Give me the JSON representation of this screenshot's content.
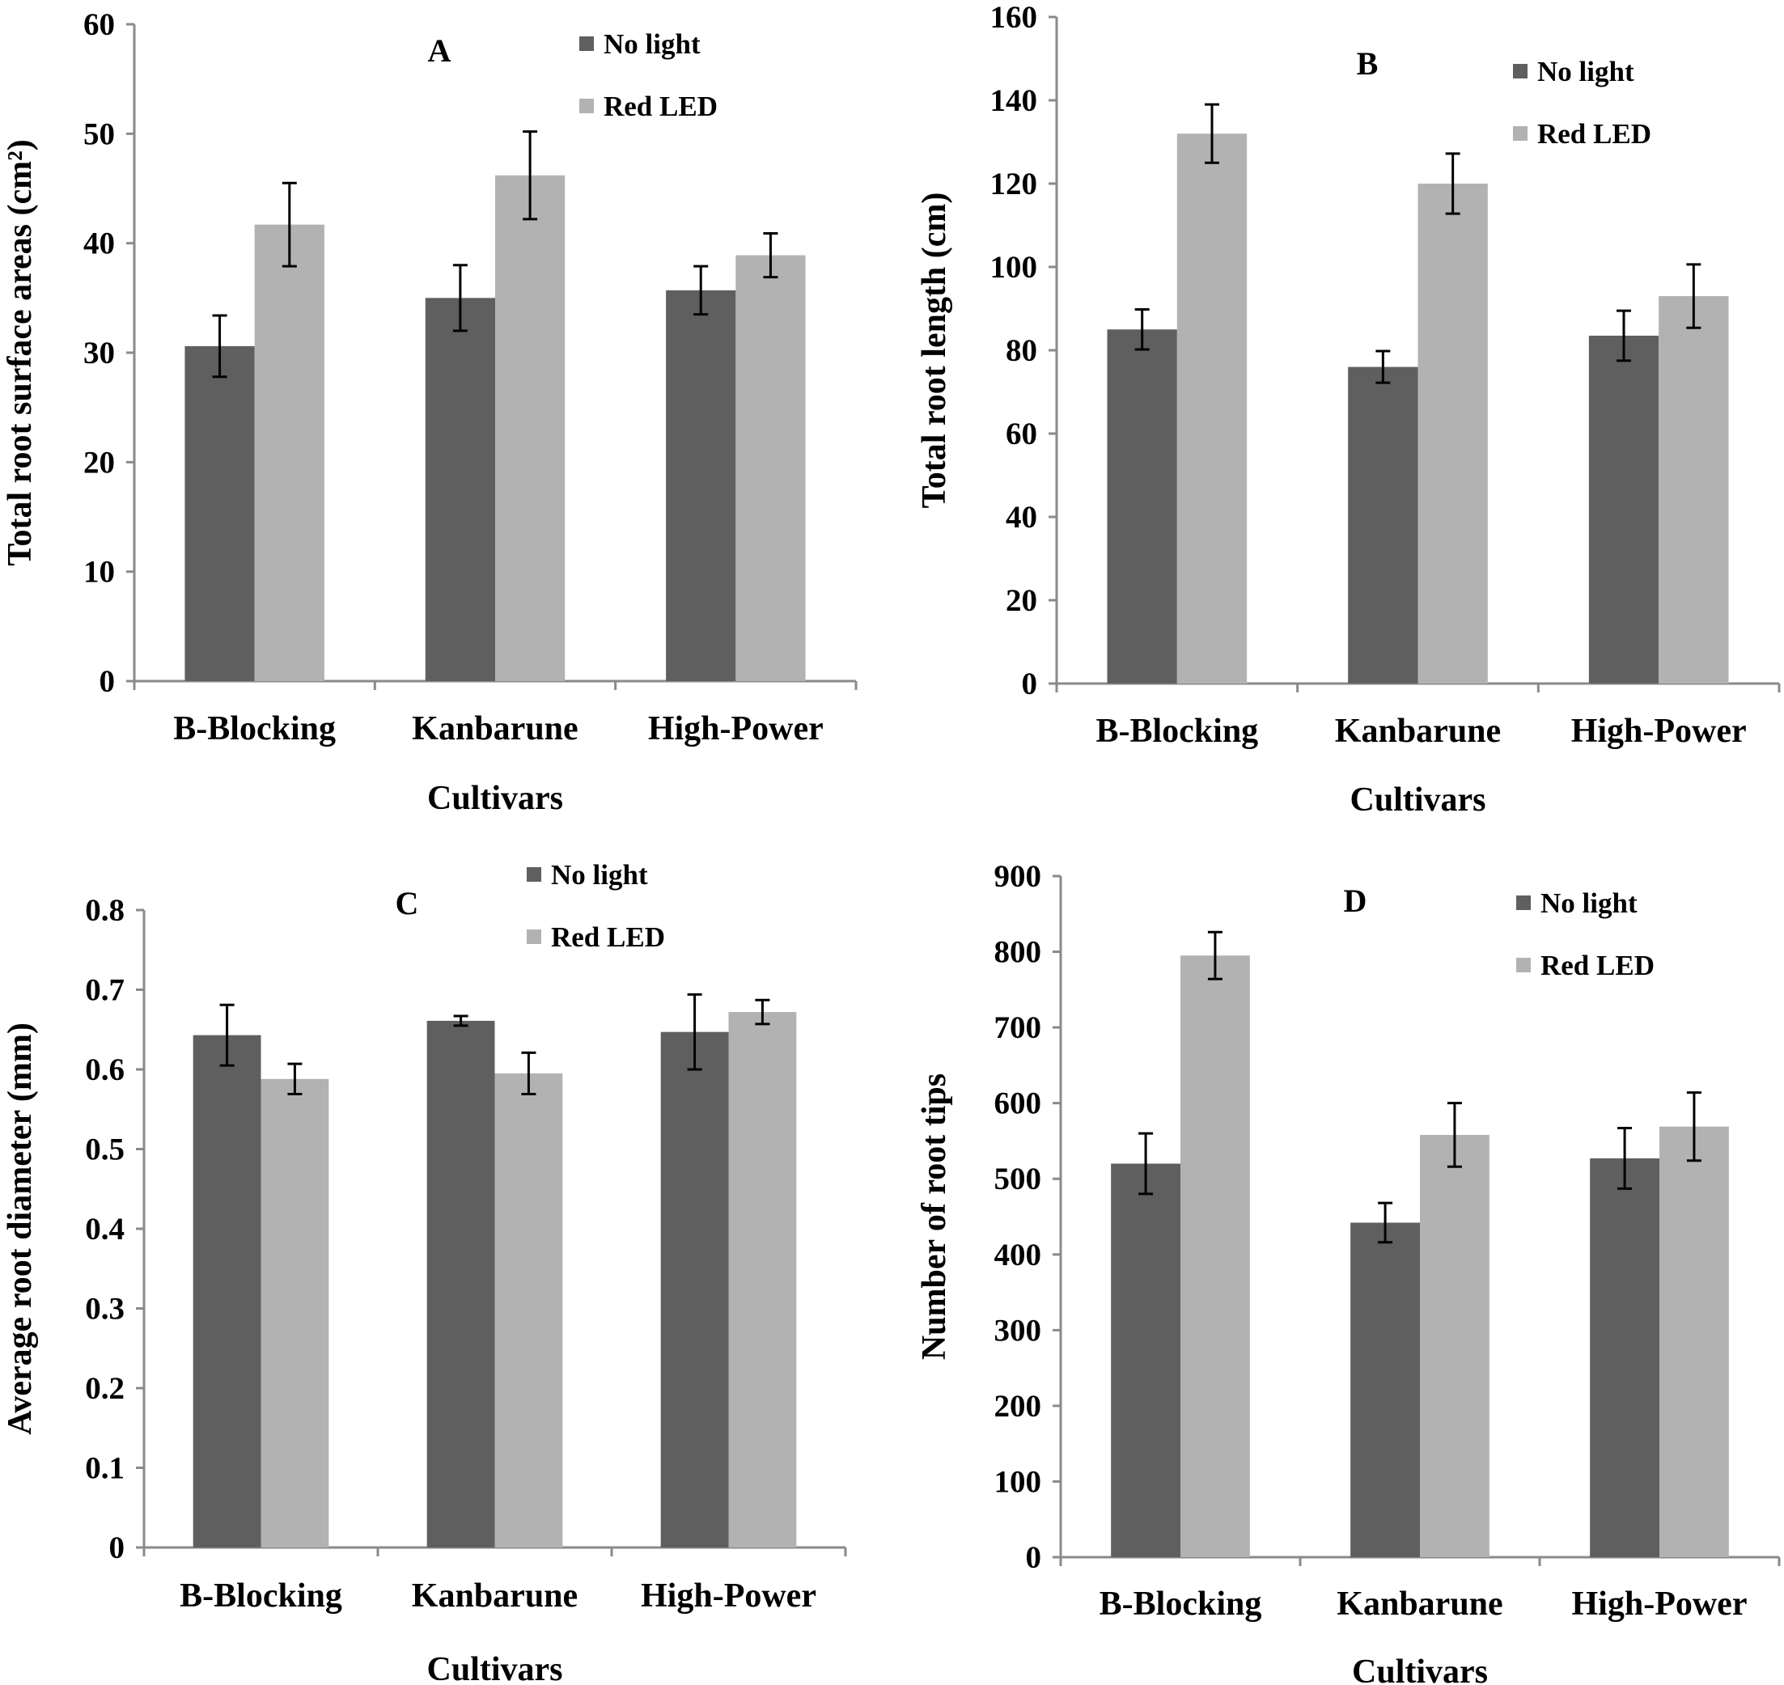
{
  "colors": {
    "no_light": "#5f5f5f",
    "red_led": "#b2b2b2",
    "axis": "#8a8a8a",
    "text": "#000000",
    "background": "#ffffff"
  },
  "chart_data": [
    {
      "panel": "A",
      "type": "bar",
      "title": "A",
      "categories": [
        "B-Blocking",
        "Kanbarune",
        "High-Power"
      ],
      "series": [
        {
          "name": "No light",
          "values": [
            30.6,
            35.0,
            35.7
          ],
          "errors": [
            2.8,
            3.0,
            2.2
          ]
        },
        {
          "name": "Red LED",
          "values": [
            41.7,
            46.2,
            38.9
          ],
          "errors": [
            3.8,
            4.0,
            2.0
          ]
        }
      ],
      "xlabel": "Cultivars",
      "ylabel": "Total root surface areas (cm²)",
      "ylim": [
        0,
        60
      ],
      "yticks": [
        0,
        10,
        20,
        30,
        40,
        50,
        60
      ],
      "ytick_labels": [
        "0",
        "10",
        "20",
        "30",
        "40",
        "50",
        "60"
      ],
      "legend": "top-right",
      "grid": false
    },
    {
      "panel": "B",
      "type": "bar",
      "title": "B",
      "categories": [
        "B-Blocking",
        "Kanbarune",
        "High-Power"
      ],
      "series": [
        {
          "name": "No light",
          "values": [
            85,
            76,
            83.5
          ],
          "errors": [
            4.8,
            3.8,
            6.0
          ]
        },
        {
          "name": "Red LED",
          "values": [
            132,
            120,
            93
          ],
          "errors": [
            7.0,
            7.2,
            7.6
          ]
        }
      ],
      "xlabel": "Cultivars",
      "ylabel": "Total root length (cm)",
      "ylim": [
        0,
        160
      ],
      "yticks": [
        0,
        20,
        40,
        60,
        80,
        100,
        120,
        140,
        160
      ],
      "ytick_labels": [
        "0",
        "20",
        "40",
        "60",
        "80",
        "100",
        "120",
        "140",
        "160"
      ],
      "legend": "top-right",
      "grid": false
    },
    {
      "panel": "C",
      "type": "bar",
      "title": "C",
      "categories": [
        "B-Blocking",
        "Kanbarune",
        "High-Power"
      ],
      "series": [
        {
          "name": "No light",
          "values": [
            0.643,
            0.661,
            0.647
          ],
          "errors": [
            0.038,
            0.006,
            0.047
          ]
        },
        {
          "name": "Red LED",
          "values": [
            0.588,
            0.595,
            0.672
          ],
          "errors": [
            0.019,
            0.026,
            0.015
          ]
        }
      ],
      "xlabel": "Cultivars",
      "ylabel": "Average root diameter (mm)",
      "ylim": [
        0,
        0.8
      ],
      "yticks": [
        0,
        0.1,
        0.2,
        0.3,
        0.4,
        0.5,
        0.6,
        0.7,
        0.8
      ],
      "ytick_labels": [
        "0",
        "0.1",
        "0.2",
        "0.3",
        "0.4",
        "0.5",
        "0.6",
        "0.7",
        "0.8"
      ],
      "legend": "top-right",
      "grid": false
    },
    {
      "panel": "D",
      "type": "bar",
      "title": "D",
      "categories": [
        "B-Blocking",
        "Kanbarune",
        "High-Power"
      ],
      "series": [
        {
          "name": "No light",
          "values": [
            520,
            442,
            527
          ],
          "errors": [
            40,
            26,
            40
          ]
        },
        {
          "name": "Red LED",
          "values": [
            795,
            558,
            569
          ],
          "errors": [
            31,
            42,
            45
          ]
        }
      ],
      "xlabel": "Cultivars",
      "ylabel": "Number of root tips",
      "ylim": [
        0,
        900
      ],
      "yticks": [
        0,
        100,
        200,
        300,
        400,
        500,
        600,
        700,
        800,
        900
      ],
      "ytick_labels": [
        "0",
        "100",
        "200",
        "300",
        "400",
        "500",
        "600",
        "700",
        "800",
        "900"
      ],
      "legend": "top-right",
      "grid": false
    }
  ]
}
